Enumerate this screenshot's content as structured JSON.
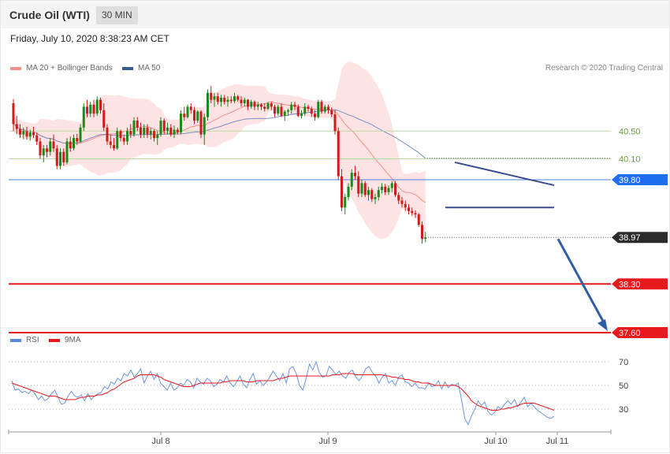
{
  "header": {
    "title": "Crude Oil (WTI)",
    "timeframe": "30 MIN"
  },
  "datetime": "Friday, July 10, 2020 8:38:23 AM CET",
  "credit": "Research © 2020 Trading Central",
  "legend_main": [
    {
      "label": "MA 20 + Bollinger Bands",
      "color": "#f4908c"
    },
    {
      "label": "MA 50",
      "color": "#3a5a9a"
    }
  ],
  "legend_rsi": [
    {
      "label": "RSI",
      "color": "#5b8be0"
    },
    {
      "label": "9MA",
      "color": "#e8191c"
    }
  ],
  "chart_data": {
    "type": "candlestick",
    "instrument": "Crude Oil (WTI)",
    "interval": "30 MIN",
    "x_ticks": [
      "Jul 8",
      "Jul 9",
      "Jul 10",
      "Jul 11"
    ],
    "price_range": [
      37.5,
      41.3
    ],
    "levels": [
      {
        "label": "40.50",
        "value": 40.5,
        "kind": "resistance"
      },
      {
        "label": "40.10",
        "value": 40.1,
        "kind": "resistance"
      },
      {
        "label": "39.80",
        "value": 39.8,
        "kind": "pivot"
      },
      {
        "label": "38.97",
        "value": 38.97,
        "kind": "last_price"
      },
      {
        "label": "38.30",
        "value": 38.3,
        "kind": "support"
      },
      {
        "label": "37.60",
        "value": 37.6,
        "kind": "support"
      }
    ],
    "candles": [
      [
        40.9,
        40.96,
        40.5,
        40.6
      ],
      [
        40.6,
        40.72,
        40.46,
        40.53
      ],
      [
        40.53,
        40.6,
        40.4,
        40.45
      ],
      [
        40.45,
        40.55,
        40.38,
        40.5
      ],
      [
        40.5,
        40.56,
        40.38,
        40.42
      ],
      [
        40.42,
        40.52,
        40.36,
        40.48
      ],
      [
        40.48,
        40.56,
        40.4,
        40.44
      ],
      [
        40.44,
        40.48,
        40.3,
        40.35
      ],
      [
        40.35,
        40.4,
        40.1,
        40.15
      ],
      [
        40.15,
        40.3,
        40.05,
        40.25
      ],
      [
        40.25,
        40.3,
        40.12,
        40.2
      ],
      [
        40.2,
        40.4,
        40.15,
        40.35
      ],
      [
        40.35,
        40.45,
        40.2,
        40.25
      ],
      [
        40.25,
        40.3,
        39.95,
        40.0
      ],
      [
        40.0,
        40.25,
        39.95,
        40.2
      ],
      [
        40.2,
        40.25,
        40.0,
        40.05
      ],
      [
        40.05,
        40.4,
        40.02,
        40.35
      ],
      [
        40.35,
        40.42,
        40.2,
        40.25
      ],
      [
        40.25,
        40.45,
        40.22,
        40.4
      ],
      [
        40.4,
        40.46,
        40.3,
        40.35
      ],
      [
        40.35,
        40.6,
        40.33,
        40.55
      ],
      [
        40.55,
        40.9,
        40.5,
        40.85
      ],
      [
        40.85,
        40.95,
        40.7,
        40.75
      ],
      [
        40.75,
        40.92,
        40.7,
        40.88
      ],
      [
        40.88,
        40.95,
        40.7,
        40.75
      ],
      [
        40.75,
        41.0,
        40.72,
        40.95
      ],
      [
        40.95,
        40.98,
        40.75,
        40.8
      ],
      [
        40.8,
        40.9,
        40.5,
        40.55
      ],
      [
        40.55,
        40.6,
        40.3,
        40.35
      ],
      [
        40.35,
        40.45,
        40.25,
        40.3
      ],
      [
        40.3,
        40.4,
        40.22,
        40.25
      ],
      [
        40.25,
        40.55,
        40.23,
        40.5
      ],
      [
        40.5,
        40.52,
        40.35,
        40.4
      ],
      [
        40.4,
        40.45,
        40.3,
        40.35
      ],
      [
        40.35,
        40.55,
        40.3,
        40.5
      ],
      [
        40.5,
        40.6,
        40.4,
        40.45
      ],
      [
        40.45,
        40.7,
        40.42,
        40.65
      ],
      [
        40.65,
        40.7,
        40.5,
        40.55
      ],
      [
        40.55,
        40.62,
        40.4,
        40.45
      ],
      [
        40.45,
        40.6,
        40.4,
        40.55
      ],
      [
        40.55,
        40.6,
        40.4,
        40.45
      ],
      [
        40.45,
        40.55,
        40.38,
        40.5
      ],
      [
        40.5,
        40.52,
        40.35,
        40.4
      ],
      [
        40.4,
        40.5,
        40.3,
        40.45
      ],
      [
        40.45,
        40.7,
        40.42,
        40.65
      ],
      [
        40.65,
        40.68,
        40.45,
        40.5
      ],
      [
        40.5,
        40.62,
        40.45,
        40.55
      ],
      [
        40.55,
        40.6,
        40.42,
        40.45
      ],
      [
        40.45,
        40.58,
        40.4,
        40.52
      ],
      [
        40.52,
        40.55,
        40.45,
        40.48
      ],
      [
        40.48,
        40.8,
        40.45,
        40.75
      ],
      [
        40.75,
        40.85,
        40.65,
        40.7
      ],
      [
        40.7,
        40.88,
        40.68,
        40.85
      ],
      [
        40.85,
        40.9,
        40.75,
        40.8
      ],
      [
        40.8,
        40.85,
        40.6,
        40.65
      ],
      [
        40.65,
        40.8,
        40.62,
        40.78
      ],
      [
        40.78,
        40.8,
        40.4,
        40.45
      ],
      [
        40.45,
        40.75,
        40.3,
        40.7
      ],
      [
        40.7,
        41.1,
        40.65,
        41.05
      ],
      [
        41.05,
        41.15,
        40.9,
        40.95
      ],
      [
        40.95,
        41.05,
        40.85,
        41.0
      ],
      [
        41.0,
        41.05,
        40.88,
        40.92
      ],
      [
        40.92,
        41.02,
        40.85,
        40.98
      ],
      [
        40.98,
        41.02,
        40.88,
        40.92
      ],
      [
        40.92,
        41.0,
        40.85,
        40.95
      ],
      [
        40.95,
        41.0,
        40.9,
        40.93
      ],
      [
        40.93,
        41.05,
        40.9,
        41.0
      ],
      [
        41.0,
        41.02,
        40.92,
        40.95
      ],
      [
        40.95,
        41.0,
        40.85,
        40.9
      ],
      [
        40.9,
        40.98,
        40.85,
        40.95
      ],
      [
        40.95,
        40.96,
        40.8,
        40.85
      ],
      [
        40.85,
        40.95,
        40.82,
        40.92
      ],
      [
        40.92,
        40.94,
        40.8,
        40.85
      ],
      [
        40.85,
        40.92,
        40.8,
        40.88
      ],
      [
        40.88,
        40.9,
        40.8,
        40.85
      ],
      [
        40.85,
        40.9,
        40.78,
        40.82
      ],
      [
        40.82,
        40.92,
        40.8,
        40.9
      ],
      [
        40.9,
        40.92,
        40.8,
        40.85
      ],
      [
        40.85,
        40.88,
        40.7,
        40.75
      ],
      [
        40.75,
        40.88,
        40.72,
        40.85
      ],
      [
        40.85,
        40.9,
        40.7,
        40.72
      ],
      [
        40.72,
        40.8,
        40.65,
        40.78
      ],
      [
        40.78,
        40.82,
        40.72,
        40.8
      ],
      [
        40.8,
        40.92,
        40.75,
        40.88
      ],
      [
        40.88,
        40.92,
        40.8,
        40.85
      ],
      [
        40.85,
        40.88,
        40.7,
        40.72
      ],
      [
        40.72,
        40.8,
        40.68,
        40.75
      ],
      [
        40.75,
        40.9,
        40.72,
        40.85
      ],
      [
        40.85,
        40.88,
        40.78,
        40.82
      ],
      [
        40.82,
        40.85,
        40.7,
        40.75
      ],
      [
        40.75,
        40.8,
        40.65,
        40.7
      ],
      [
        40.7,
        40.95,
        40.68,
        40.92
      ],
      [
        40.92,
        40.95,
        40.75,
        40.78
      ],
      [
        40.78,
        40.88,
        40.75,
        40.85
      ],
      [
        40.85,
        40.88,
        40.75,
        40.8
      ],
      [
        40.8,
        40.84,
        40.7,
        40.74
      ],
      [
        40.74,
        40.8,
        40.45,
        40.5
      ],
      [
        40.5,
        40.55,
        39.8,
        39.85
      ],
      [
        39.85,
        39.95,
        39.35,
        39.4
      ],
      [
        39.4,
        39.6,
        39.3,
        39.55
      ],
      [
        39.55,
        39.75,
        39.5,
        39.7
      ],
      [
        39.7,
        39.95,
        39.65,
        39.9
      ],
      [
        39.9,
        40.0,
        39.8,
        39.85
      ],
      [
        39.85,
        39.92,
        39.55,
        39.6
      ],
      [
        39.6,
        39.8,
        39.55,
        39.75
      ],
      [
        39.75,
        39.78,
        39.55,
        39.58
      ],
      [
        39.58,
        39.7,
        39.5,
        39.65
      ],
      [
        39.65,
        39.68,
        39.48,
        39.52
      ],
      [
        39.52,
        39.6,
        39.45,
        39.55
      ],
      [
        39.55,
        39.7,
        39.5,
        39.65
      ],
      [
        39.65,
        39.75,
        39.6,
        39.7
      ],
      [
        39.7,
        39.74,
        39.58,
        39.62
      ],
      [
        39.62,
        39.72,
        39.58,
        39.68
      ],
      [
        39.68,
        39.78,
        39.62,
        39.75
      ],
      [
        39.75,
        39.78,
        39.55,
        39.58
      ],
      [
        39.58,
        39.62,
        39.45,
        39.5
      ],
      [
        39.5,
        39.55,
        39.4,
        39.45
      ],
      [
        39.45,
        39.5,
        39.35,
        39.4
      ],
      [
        39.4,
        39.45,
        39.3,
        39.35
      ],
      [
        39.35,
        39.4,
        39.28,
        39.32
      ],
      [
        39.32,
        39.36,
        39.25,
        39.3
      ],
      [
        39.3,
        39.32,
        39.12,
        39.15
      ],
      [
        39.15,
        39.2,
        38.88,
        38.95
      ],
      [
        38.95,
        39.05,
        38.9,
        38.97
      ]
    ],
    "annotations": [
      {
        "type": "triangle",
        "upper_line": [
          40.05,
          39.72
        ],
        "lower_line": [
          39.4,
          39.4
        ]
      },
      {
        "type": "arrow",
        "from": 38.97,
        "to": 37.6,
        "direction": "down"
      }
    ],
    "rsi": {
      "ticks": [
        "70",
        "50",
        "30"
      ],
      "range": [
        0,
        100
      ],
      "rsi_values": [
        54,
        46,
        47,
        44,
        45,
        43,
        46,
        43,
        38,
        41,
        37,
        39,
        43,
        46,
        40,
        34,
        35,
        41,
        45,
        41,
        40,
        42,
        37,
        43,
        38,
        41,
        43,
        44,
        49,
        47,
        53,
        51,
        56,
        54,
        60,
        58,
        63,
        57,
        60,
        64,
        52,
        58,
        62,
        55,
        60,
        52,
        49,
        46,
        52,
        46,
        48,
        52,
        50,
        55,
        53,
        48,
        56,
        53,
        51,
        56,
        54,
        49,
        51,
        55,
        53,
        58,
        52,
        49,
        53,
        58,
        51,
        48,
        55,
        60,
        51,
        54,
        50,
        53,
        57,
        62,
        58,
        54,
        60,
        52,
        64,
        66,
        60,
        50,
        46,
        56,
        68,
        63,
        70,
        61,
        57,
        58,
        66,
        63,
        59,
        62,
        58,
        56,
        61,
        63,
        57,
        54,
        58,
        64,
        66,
        61,
        58,
        52,
        57,
        60,
        52,
        54,
        50,
        57,
        59,
        53,
        52,
        49,
        52,
        48,
        48,
        47,
        52,
        49,
        50,
        54,
        47,
        53,
        48,
        51,
        50,
        52,
        38,
        22,
        17,
        24,
        30,
        37,
        33,
        36,
        28,
        25,
        27,
        32,
        30,
        34,
        37,
        34,
        38,
        32,
        36,
        40,
        32,
        35,
        32,
        29,
        27,
        25,
        23,
        22,
        24
      ],
      "ma9_values": [
        52,
        51,
        50,
        49,
        48,
        47,
        46,
        45,
        44,
        43,
        42,
        41,
        41,
        41,
        40,
        39,
        38,
        38,
        38,
        38,
        39,
        40,
        40,
        41,
        41,
        41,
        42,
        42,
        43,
        44,
        46,
        47,
        49,
        51,
        53,
        54,
        55,
        56,
        58,
        59,
        59,
        59,
        59,
        59,
        58,
        57,
        55,
        54,
        53,
        52,
        51,
        50,
        49,
        49,
        49,
        50,
        51,
        52,
        52,
        52,
        52,
        52,
        52,
        52,
        53,
        53,
        54,
        54,
        54,
        54,
        54,
        53,
        53,
        53,
        54,
        54,
        54,
        54,
        54,
        54,
        55,
        56,
        56,
        57,
        58,
        58,
        58,
        58,
        58,
        58,
        58,
        58,
        58,
        58,
        58,
        58,
        58,
        59,
        59,
        59,
        60,
        60,
        60,
        60,
        59,
        59,
        59,
        59,
        59,
        59,
        59,
        59,
        59,
        58,
        58,
        57,
        57,
        56,
        56,
        55,
        55,
        54,
        53,
        53,
        52,
        52,
        52,
        51,
        50,
        50,
        50,
        50,
        50,
        50,
        50,
        49,
        47,
        44,
        41,
        37,
        35,
        33,
        32,
        31,
        30,
        29,
        29,
        29,
        30,
        30,
        31,
        31,
        32,
        33,
        34,
        35,
        35,
        35,
        35,
        34,
        33,
        32,
        31,
        30,
        29
      ]
    }
  }
}
